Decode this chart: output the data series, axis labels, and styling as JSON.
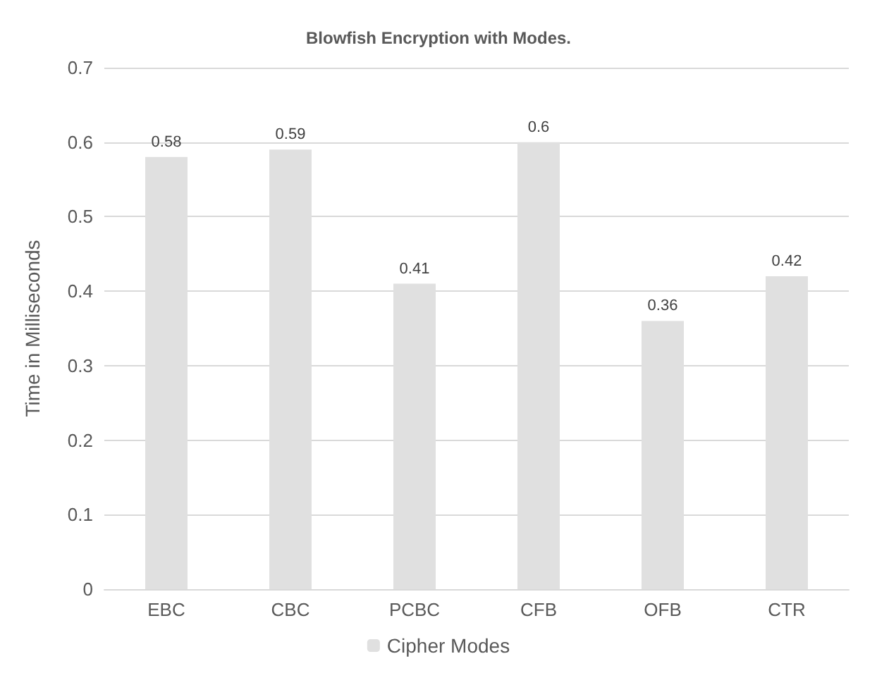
{
  "chart_data": {
    "type": "bar",
    "title": "Blowfish Encryption with Modes.",
    "ylabel": "Time in Milliseconds",
    "categories": [
      "EBC",
      "CBC",
      "PCBC",
      "CFB",
      "OFB",
      "CTR"
    ],
    "series": [
      {
        "name": "Cipher Modes",
        "color": "#e0e0e0",
        "values": [
          0.58,
          0.59,
          0.41,
          0.6,
          0.36,
          0.42
        ]
      }
    ],
    "ylim": [
      0,
      0.7
    ],
    "yticks": [
      0,
      0.1,
      0.2,
      0.3,
      0.4,
      0.5,
      0.6,
      0.7
    ],
    "grid": "y",
    "legend": "bottom",
    "data_labels": true
  }
}
